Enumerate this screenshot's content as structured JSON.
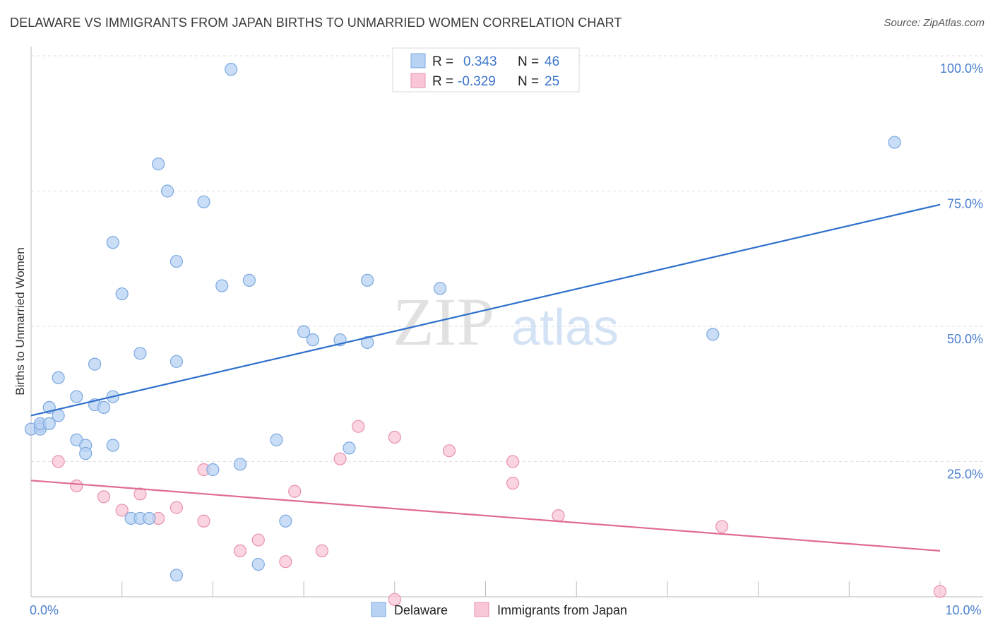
{
  "header": {
    "title": "DELAWARE VS IMMIGRANTS FROM JAPAN BIRTHS TO UNMARRIED WOMEN CORRELATION CHART",
    "source": "Source: ZipAtlas.com"
  },
  "watermark": {
    "zip": "ZIP",
    "atlas": "atlas"
  },
  "colors": {
    "delaware_fill": "#b8d2f3",
    "delaware_stroke": "#7aa8e0",
    "delaware_line": "#2f6fcc",
    "japan_fill": "#f8c6d6",
    "japan_stroke": "#e891ad",
    "japan_line": "#e06a95",
    "grid": "#dddddd",
    "tick_label": "#4a7fd0"
  },
  "legend": {
    "rows": [
      {
        "r_label": "R = ",
        "r_value": "0.343",
        "n_label": "N = ",
        "n_value": "46"
      },
      {
        "r_label": "R = ",
        "r_value": "-0.329",
        "n_label": "N = ",
        "n_value": "25"
      }
    ]
  },
  "chart_data": {
    "type": "scatter",
    "title": "DELAWARE VS IMMIGRANTS FROM JAPAN BIRTHS TO UNMARRIED WOMEN CORRELATION CHART",
    "xlabel": "",
    "ylabel": "Births to Unmarried Women",
    "xlim": [
      0,
      10
    ],
    "ylim": [
      0,
      100
    ],
    "x_ticks": [
      0,
      10
    ],
    "x_tick_labels": [
      "0.0%",
      "10.0%"
    ],
    "y_ticks": [
      25,
      50,
      75,
      100
    ],
    "y_tick_labels": [
      "25.0%",
      "50.0%",
      "75.0%",
      "100.0%"
    ],
    "grid": true,
    "legend_position": "top-center",
    "series": [
      {
        "name": "Delaware",
        "trend": {
          "x": [
            0,
            10
          ],
          "y": [
            33.5,
            72.5
          ]
        },
        "points": [
          [
            2.2,
            97.5
          ],
          [
            9.5,
            84
          ],
          [
            1.4,
            80
          ],
          [
            1.5,
            75
          ],
          [
            1.9,
            73
          ],
          [
            0.9,
            65.5
          ],
          [
            1.6,
            62
          ],
          [
            2.4,
            58.5
          ],
          [
            2.1,
            57.5
          ],
          [
            3.7,
            58.5
          ],
          [
            4.5,
            57
          ],
          [
            1.0,
            56
          ],
          [
            3.0,
            49
          ],
          [
            3.1,
            47.5
          ],
          [
            3.4,
            47.5
          ],
          [
            3.7,
            47
          ],
          [
            7.5,
            48.5
          ],
          [
            1.2,
            45
          ],
          [
            1.6,
            43.5
          ],
          [
            0.7,
            43
          ],
          [
            0.3,
            40.5
          ],
          [
            0.5,
            37
          ],
          [
            0.9,
            37
          ],
          [
            0.7,
            35.5
          ],
          [
            0.8,
            35
          ],
          [
            0.2,
            35
          ],
          [
            0.3,
            33.5
          ],
          [
            0.1,
            31.5
          ],
          [
            0.0,
            31
          ],
          [
            0.5,
            29
          ],
          [
            0.6,
            28
          ],
          [
            0.9,
            28
          ],
          [
            2.7,
            29
          ],
          [
            3.5,
            27.5
          ],
          [
            0.6,
            26.5
          ],
          [
            2.3,
            24.5
          ],
          [
            2.0,
            23.5
          ],
          [
            1.1,
            14.5
          ],
          [
            1.2,
            14.5
          ],
          [
            1.3,
            14.5
          ],
          [
            2.8,
            14
          ],
          [
            1.6,
            4
          ],
          [
            2.5,
            6
          ],
          [
            0.1,
            31
          ],
          [
            0.1,
            32
          ],
          [
            0.2,
            32
          ]
        ]
      },
      {
        "name": "Immigrants from Japan",
        "trend": {
          "x": [
            0,
            10
          ],
          "y": [
            21.5,
            8.5
          ]
        },
        "points": [
          [
            0.1,
            31.5
          ],
          [
            0.3,
            25
          ],
          [
            0.5,
            20.5
          ],
          [
            0.8,
            18.5
          ],
          [
            1.0,
            16
          ],
          [
            1.2,
            19
          ],
          [
            1.4,
            14.5
          ],
          [
            1.6,
            16.5
          ],
          [
            1.9,
            14
          ],
          [
            1.9,
            23.5
          ],
          [
            2.3,
            8.5
          ],
          [
            2.5,
            10.5
          ],
          [
            2.8,
            6.5
          ],
          [
            2.9,
            19.5
          ],
          [
            3.2,
            8.5
          ],
          [
            3.4,
            25.5
          ],
          [
            3.6,
            31.5
          ],
          [
            4.0,
            29.5
          ],
          [
            4.0,
            -0.5
          ],
          [
            4.6,
            27
          ],
          [
            5.3,
            21
          ],
          [
            5.3,
            25
          ],
          [
            5.8,
            15
          ],
          [
            7.6,
            13
          ],
          [
            10.0,
            1
          ]
        ]
      }
    ]
  },
  "bottom_legend": {
    "items": [
      {
        "label": "Delaware"
      },
      {
        "label": "Immigrants from Japan"
      }
    ]
  }
}
